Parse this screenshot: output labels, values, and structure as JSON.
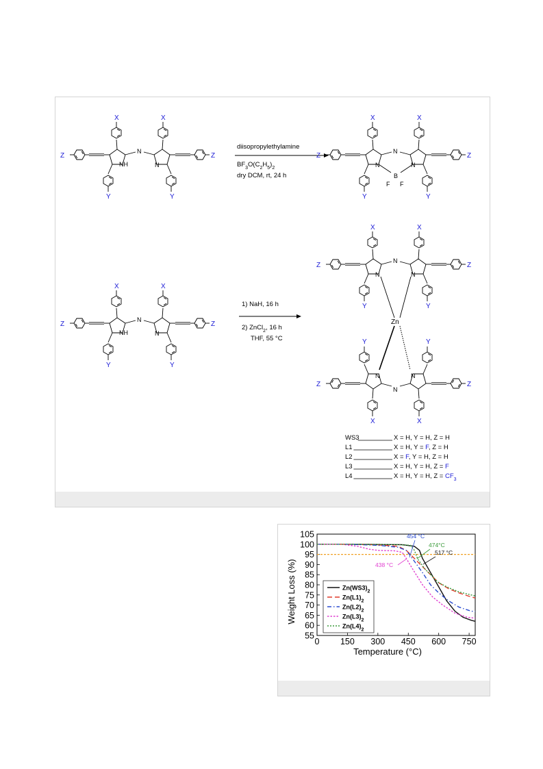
{
  "scheme": {
    "reaction1": {
      "reagent1": "diisopropylethylamine",
      "reagent2": "BF3O(C2H5)2",
      "reagent3": "dry DCM, rt, 24 h"
    },
    "reaction2": {
      "step1": "1) NaH, 16 h",
      "step2": "2) ZnCl2, 16 h",
      "step3": "THF, 55 °C"
    },
    "labels": {
      "X": "X",
      "Y": "Y",
      "Z": "Z",
      "NH": "NH",
      "N": "N",
      "B": "B",
      "F": "F",
      "Zn": "Zn"
    },
    "ligand_table": [
      {
        "name": "WS3",
        "x": "H",
        "y": "H",
        "z": "H",
        "blue": ""
      },
      {
        "name": "L1",
        "x": "H",
        "y": "F",
        "z": "H",
        "blue": "y"
      },
      {
        "name": "L2",
        "x": "F",
        "y": "H",
        "z": "H",
        "blue": "x"
      },
      {
        "name": "L3",
        "x": "H",
        "y": "H",
        "z": "F",
        "blue": "z"
      },
      {
        "name": "L4",
        "x": "H",
        "y": "H",
        "z": "CF3",
        "blue": "z"
      }
    ]
  },
  "chart_data": {
    "type": "line",
    "xlabel": "Temperature (°C)",
    "ylabel": "Weight Loss (%)",
    "xlim": [
      0,
      780
    ],
    "ylim": [
      55,
      105
    ],
    "xticks": [
      0,
      150,
      300,
      450,
      600,
      750
    ],
    "yticks": [
      55,
      60,
      65,
      70,
      75,
      80,
      85,
      90,
      95,
      100,
      105
    ],
    "threshold_line": 95,
    "legend_placement": "bottom-left",
    "series": [
      {
        "name": "Zn(WS3)2",
        "color": "#111111",
        "dash": "",
        "points": [
          [
            0,
            100
          ],
          [
            200,
            100
          ],
          [
            420,
            99.8
          ],
          [
            480,
            99
          ],
          [
            505,
            97
          ],
          [
            520,
            93
          ],
          [
            560,
            86
          ],
          [
            600,
            79
          ],
          [
            640,
            72
          ],
          [
            680,
            67
          ],
          [
            720,
            64
          ],
          [
            760,
            62.5
          ],
          [
            780,
            62
          ]
        ]
      },
      {
        "name": "Zn(L1)2",
        "color": "#e03a2a",
        "dash": "7,4",
        "points": [
          [
            0,
            100
          ],
          [
            150,
            100
          ],
          [
            300,
            99.7
          ],
          [
            400,
            99
          ],
          [
            440,
            97
          ],
          [
            480,
            93
          ],
          [
            520,
            89
          ],
          [
            560,
            85
          ],
          [
            600,
            81
          ],
          [
            650,
            78
          ],
          [
            700,
            76
          ],
          [
            760,
            74
          ],
          [
            780,
            73.5
          ]
        ]
      },
      {
        "name": "Zn(L2)2",
        "color": "#2a4bd0",
        "dash": "6,3,1.5,3",
        "points": [
          [
            0,
            100
          ],
          [
            150,
            100
          ],
          [
            300,
            99.5
          ],
          [
            400,
            98.5
          ],
          [
            440,
            97
          ],
          [
            470,
            93
          ],
          [
            520,
            86
          ],
          [
            560,
            80
          ],
          [
            600,
            76
          ],
          [
            650,
            72
          ],
          [
            700,
            69
          ],
          [
            760,
            67
          ],
          [
            780,
            66.8
          ]
        ]
      },
      {
        "name": "Zn(L3)2",
        "color": "#e040d0",
        "dash": "2.5,2",
        "points": [
          [
            0,
            100
          ],
          [
            120,
            100
          ],
          [
            200,
            99
          ],
          [
            260,
            97.5
          ],
          [
            300,
            97
          ],
          [
            380,
            96.8
          ],
          [
            420,
            96
          ],
          [
            440,
            93
          ],
          [
            470,
            88
          ],
          [
            520,
            80
          ],
          [
            570,
            74
          ],
          [
            620,
            70
          ],
          [
            680,
            66
          ],
          [
            740,
            64
          ],
          [
            780,
            63.5
          ]
        ]
      },
      {
        "name": "Zn(L4)2",
        "color": "#3a9a3a",
        "dash": "2,2",
        "points": [
          [
            0,
            100
          ],
          [
            200,
            100
          ],
          [
            400,
            99.8
          ],
          [
            460,
            99.5
          ],
          [
            480,
            97
          ],
          [
            495,
            93
          ],
          [
            530,
            88
          ],
          [
            570,
            84
          ],
          [
            600,
            81
          ],
          [
            650,
            78.5
          ],
          [
            700,
            76.5
          ],
          [
            760,
            75
          ],
          [
            780,
            74.5
          ]
        ]
      }
    ],
    "annotations": [
      {
        "text": "454 °C",
        "color": "#2a4bd0",
        "x": 454
      },
      {
        "text": "474°C",
        "color": "#3a9a3a",
        "x": 474
      },
      {
        "text": "517 °C",
        "color": "#111111",
        "x": 517
      },
      {
        "text": "438 °C",
        "color": "#e040d0",
        "x": 438
      }
    ]
  }
}
